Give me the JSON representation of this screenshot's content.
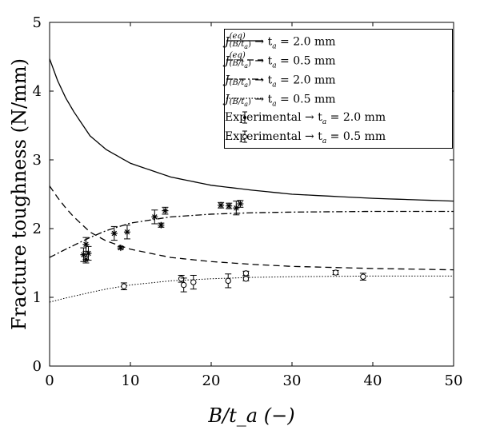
{
  "chart_data": {
    "type": "line",
    "xlabel": "B/t_a (−)",
    "ylabel": "Fracture toughness (N/mm)",
    "xlim": [
      0,
      50
    ],
    "ylim": [
      0,
      5
    ],
    "xticks": [
      "0",
      "10",
      "20",
      "30",
      "40",
      "50"
    ],
    "yticks": [
      "0",
      "1",
      "2",
      "3",
      "4",
      "5"
    ],
    "grid": false,
    "legend_placement": "top-right",
    "series": [
      {
        "name": "J^(eq)_(B/t_a) → t_a = 2.0 mm",
        "style": "solid",
        "x": [
          0,
          1,
          2,
          3,
          5,
          7,
          10,
          15,
          20,
          25,
          30,
          40,
          50
        ],
        "y": [
          4.47,
          4.15,
          3.9,
          3.7,
          3.35,
          3.15,
          2.95,
          2.75,
          2.63,
          2.56,
          2.5,
          2.44,
          2.4
        ]
      },
      {
        "name": "J^(eq)_(B/t_a) → t_a = 0.5 mm",
        "style": "dashed",
        "x": [
          0,
          1,
          2,
          3,
          5,
          7,
          10,
          15,
          20,
          25,
          30,
          40,
          50
        ],
        "y": [
          2.62,
          2.45,
          2.3,
          2.17,
          1.95,
          1.82,
          1.7,
          1.58,
          1.52,
          1.48,
          1.45,
          1.42,
          1.4
        ]
      },
      {
        "name": "J_(B/t_a) → t_a = 2.0 mm",
        "style": "dashdot",
        "x": [
          0,
          2,
          5,
          7,
          10,
          15,
          20,
          25,
          30,
          40,
          50
        ],
        "y": [
          1.58,
          1.7,
          1.87,
          1.97,
          2.08,
          2.17,
          2.21,
          2.23,
          2.24,
          2.25,
          2.25
        ]
      },
      {
        "name": "J_(B/t_a) → t_a = 0.5 mm",
        "style": "dotted",
        "x": [
          0,
          2,
          5,
          7,
          10,
          15,
          20,
          25,
          30,
          40,
          50
        ],
        "y": [
          0.93,
          0.99,
          1.07,
          1.12,
          1.18,
          1.24,
          1.27,
          1.29,
          1.3,
          1.31,
          1.31
        ]
      },
      {
        "name": "Experimental → t_a = 2.0 mm",
        "style": "star-errorbar",
        "x": [
          4.2,
          4.5,
          4.5,
          4.8,
          8,
          8.8,
          9.6,
          13,
          13.8,
          14.3,
          21.2,
          22.2,
          23.1,
          23.6
        ],
        "y": [
          1.62,
          1.55,
          1.77,
          1.64,
          1.93,
          1.72,
          1.95,
          2.17,
          2.05,
          2.26,
          2.34,
          2.33,
          2.3,
          2.36
        ],
        "err": [
          0.1,
          0.05,
          0.1,
          0.1,
          0.1,
          0.02,
          0.1,
          0.1,
          0.03,
          0.05,
          0.04,
          0.04,
          0.1,
          0.05
        ]
      },
      {
        "name": "Experimental → t_a = 0.5 mm",
        "style": "circle-errorbar",
        "x": [
          9.2,
          16.3,
          16.6,
          17.8,
          22.1,
          24.3,
          24.3,
          35.4,
          38.8
        ],
        "y": [
          1.16,
          1.27,
          1.18,
          1.22,
          1.24,
          1.27,
          1.35,
          1.36,
          1.3
        ],
        "err": [
          0.05,
          0.05,
          0.1,
          0.1,
          0.1,
          0.03,
          0.03,
          0.03,
          0.05
        ]
      }
    ]
  },
  "legend": {
    "items": [
      {
        "main": "J",
        "sup": "(eq)",
        "sub": "(B/t",
        "subsub": "a",
        ")": ")",
        "rest": " → t",
        "ra": "a",
        "val": " = 2.0 mm"
      },
      {
        "main": "J",
        "sup": "(eq)",
        "sub": "(B/t",
        "subsub": "a",
        "rest": " → t",
        "ra": "a",
        "val": " = 0.5 mm"
      },
      {
        "main": "J",
        "sup": "",
        "sub": "(B/t",
        "subsub": "a",
        "rest": " → t",
        "ra": "a",
        "val": " = 2.0 mm"
      },
      {
        "main": "J",
        "sup": "",
        "sub": "(B/t",
        "subsub": "a",
        "rest": " → t",
        "ra": "a",
        "val": " = 0.5 mm"
      },
      {
        "main": "Experimental",
        "rest": " → t",
        "ra": "a",
        "val": " = 2.0 mm"
      },
      {
        "main": "Experimental",
        "rest": " → t",
        "ra": "a",
        "val": " = 0.5 mm"
      }
    ]
  }
}
